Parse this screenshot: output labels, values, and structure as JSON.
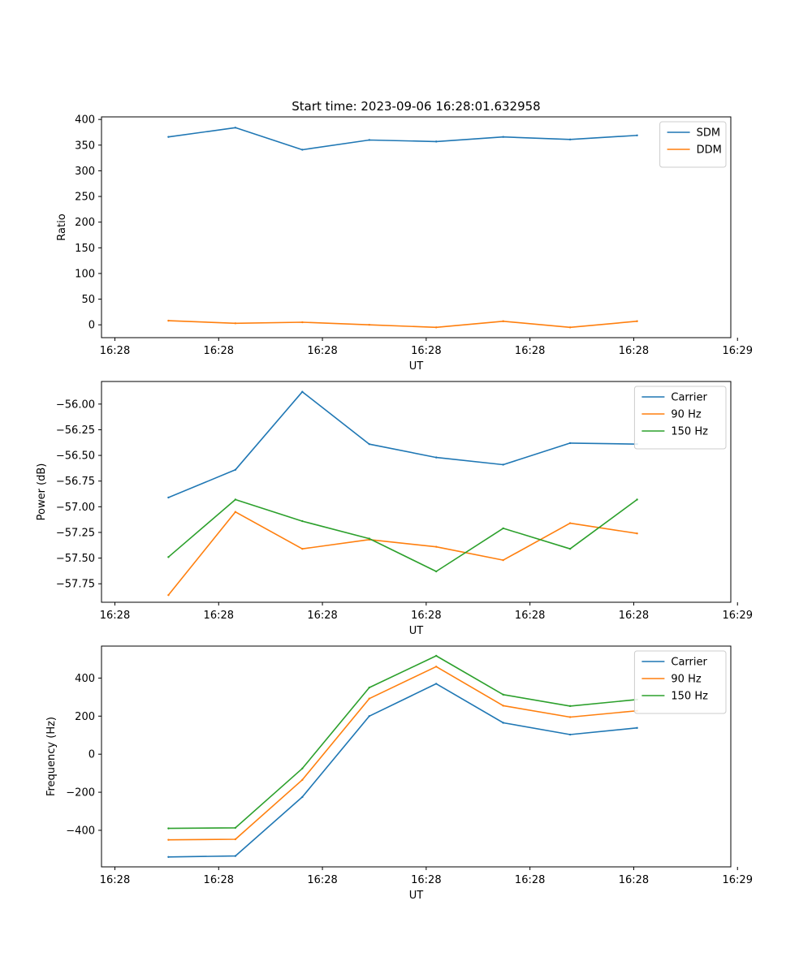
{
  "title": "Start time: 2023-09-06 16:28:01.632958",
  "colors": {
    "blue": "#1f77b4",
    "orange": "#ff7f0e",
    "green": "#2ca02c"
  },
  "chart_data": [
    {
      "type": "line",
      "title": "Start time: 2023-09-06 16:28:01.632958",
      "xlabel": "UT",
      "ylabel": "Ratio",
      "x": [
        1,
        2,
        3,
        4,
        5,
        6,
        7,
        8
      ],
      "xlim": [
        0,
        9.4
      ],
      "xticks": [
        0.2,
        1.75,
        3.3,
        4.85,
        6.4,
        7.95,
        9.5
      ],
      "xtick_labels": [
        "16:28",
        "16:28",
        "16:28",
        "16:28",
        "16:28",
        "16:28",
        "16:29"
      ],
      "ylim": [
        -25,
        405
      ],
      "yticks": [
        0,
        50,
        100,
        150,
        200,
        250,
        300,
        350,
        400
      ],
      "ytick_labels": [
        "0",
        "50",
        "100",
        "150",
        "200",
        "250",
        "300",
        "350",
        "400"
      ],
      "legend_position": "top-right",
      "series": [
        {
          "name": "SDM",
          "color": "#1f77b4",
          "values": [
            366,
            384,
            341,
            360,
            357,
            366,
            361,
            369
          ]
        },
        {
          "name": "DDM",
          "color": "#ff7f0e",
          "values": [
            8,
            3,
            5,
            0,
            -5,
            7,
            -5,
            7
          ]
        }
      ]
    },
    {
      "type": "line",
      "xlabel": "UT",
      "ylabel": "Power (dB)",
      "x": [
        1,
        2,
        3,
        4,
        5,
        6,
        7,
        8
      ],
      "xlim": [
        0,
        9.4
      ],
      "xticks": [
        0.2,
        1.75,
        3.3,
        4.85,
        6.4,
        7.95,
        9.5
      ],
      "xtick_labels": [
        "16:28",
        "16:28",
        "16:28",
        "16:28",
        "16:28",
        "16:28",
        "16:29"
      ],
      "ylim": [
        -57.93,
        -55.78
      ],
      "yticks": [
        -57.75,
        -57.5,
        -57.25,
        -57.0,
        -56.75,
        -56.5,
        -56.25,
        -56.0
      ],
      "ytick_labels": [
        "−57.75",
        "−57.50",
        "−57.25",
        "−57.00",
        "−56.75",
        "−56.50",
        "−56.25",
        "−56.00"
      ],
      "legend_position": "top-right",
      "series": [
        {
          "name": "Carrier",
          "color": "#1f77b4",
          "values": [
            -56.91,
            -56.64,
            -55.88,
            -56.39,
            -56.52,
            -56.59,
            -56.38,
            -56.39
          ]
        },
        {
          "name": "90 Hz",
          "color": "#ff7f0e",
          "values": [
            -57.86,
            -57.05,
            -57.41,
            -57.32,
            -57.39,
            -57.52,
            -57.16,
            -57.26
          ]
        },
        {
          "name": "150 Hz",
          "color": "#2ca02c",
          "values": [
            -57.49,
            -56.93,
            -57.14,
            -57.31,
            -57.63,
            -57.21,
            -57.41,
            -56.93
          ]
        }
      ]
    },
    {
      "type": "line",
      "xlabel": "UT",
      "ylabel": "Frequency (Hz)",
      "x": [
        1,
        2,
        3,
        4,
        5,
        6,
        7,
        8
      ],
      "xlim": [
        0,
        9.4
      ],
      "xticks": [
        0.2,
        1.75,
        3.3,
        4.85,
        6.4,
        7.95,
        9.5
      ],
      "xtick_labels": [
        "16:28",
        "16:28",
        "16:28",
        "16:28",
        "16:28",
        "16:28",
        "16:29"
      ],
      "ylim": [
        -592,
        568
      ],
      "yticks": [
        -400,
        -200,
        0,
        200,
        400
      ],
      "ytick_labels": [
        "−400",
        "−200",
        "0",
        "200",
        "400"
      ],
      "legend_position": "top-right",
      "series": [
        {
          "name": "Carrier",
          "color": "#1f77b4",
          "values": [
            -540,
            -535,
            -225,
            200,
            370,
            165,
            103,
            138
          ]
        },
        {
          "name": "90 Hz",
          "color": "#ff7f0e",
          "values": [
            -450,
            -447,
            -135,
            292,
            460,
            255,
            195,
            228
          ]
        },
        {
          "name": "150 Hz",
          "color": "#2ca02c",
          "values": [
            -390,
            -387,
            -75,
            350,
            517,
            313,
            253,
            287
          ]
        }
      ]
    }
  ]
}
